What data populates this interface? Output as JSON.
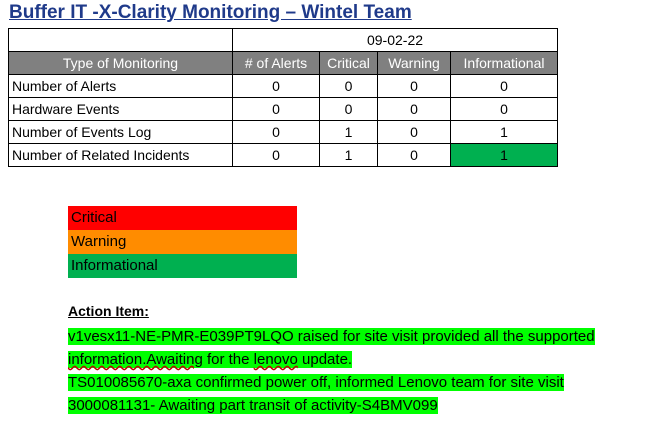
{
  "title": "Buffer IT -X-Clarity Monitoring – Wintel Team",
  "date": "09-02-22",
  "headers": [
    "Type of Monitoring",
    "# of Alerts",
    "Critical",
    "Warning",
    "Informational"
  ],
  "rows": [
    {
      "label": "Number of Alerts",
      "values": [
        "0",
        "0",
        "0",
        "0"
      ]
    },
    {
      "label": "Hardware Events",
      "values": [
        "0",
        "0",
        "0",
        "0"
      ]
    },
    {
      "label": "Number of Events Log",
      "values": [
        "0",
        "1",
        "0",
        "1"
      ]
    },
    {
      "label": "Number of Related Incidents",
      "values": [
        "0",
        "1",
        "0",
        "1"
      ]
    }
  ],
  "colors": {
    "header_bg": "#808080",
    "critical": "#ff0000",
    "warning": "#ff8c00",
    "informational": "#00b050",
    "highlight": "#00ff00"
  },
  "legend": [
    "Critical",
    "Warning",
    "Informational"
  ],
  "action_title": "Action Item:",
  "actions": {
    "line1": "v1vesx11-NE-PMR-E039PT9LQO raised for site visit provided all the supported",
    "line2_a": "information.Awaiting",
    "line2_b": " for the ",
    "line2_c": "lenovo",
    "line2_d": " update.",
    "line3": "TS010085670-axa confirmed power off, informed Lenovo team for site visit",
    "line4": "3000081131- Awaiting part transit of activity-S4BMV099"
  }
}
